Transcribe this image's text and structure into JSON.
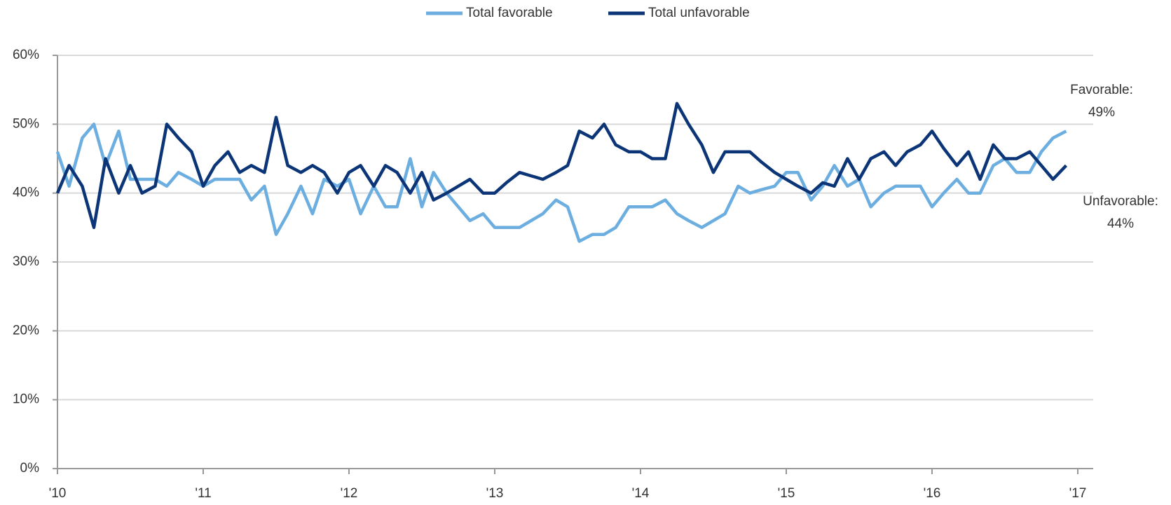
{
  "chart_data": {
    "type": "line",
    "x": [
      2010,
      2010.08,
      2010.17,
      2010.25,
      2010.33,
      2010.42,
      2010.5,
      2010.58,
      2010.67,
      2010.75,
      2010.83,
      2010.92,
      2011,
      2011.08,
      2011.17,
      2011.25,
      2011.33,
      2011.42,
      2011.5,
      2011.58,
      2011.67,
      2011.75,
      2011.83,
      2011.92,
      2012,
      2012.08,
      2012.17,
      2012.25,
      2012.33,
      2012.42,
      2012.5,
      2012.58,
      2012.67,
      2012.75,
      2012.83,
      2012.92,
      2013,
      2013.08,
      2013.17,
      2013.25,
      2013.33,
      2013.42,
      2013.5,
      2013.58,
      2013.67,
      2013.75,
      2013.83,
      2013.92,
      2014,
      2014.08,
      2014.17,
      2014.25,
      2014.33,
      2014.42,
      2014.5,
      2014.58,
      2014.67,
      2014.75,
      2014.83,
      2014.92,
      2015,
      2015.08,
      2015.17,
      2015.25,
      2015.33,
      2015.42,
      2015.5,
      2015.58,
      2015.67,
      2015.75,
      2015.83,
      2015.92,
      2016,
      2016.08,
      2016.17,
      2016.25,
      2016.33,
      2016.42,
      2016.5,
      2016.58,
      2016.67,
      2016.75,
      2016.83,
      2016.92
    ],
    "series": [
      {
        "name": "Total favorable",
        "color": "#6caee0",
        "values": [
          46,
          41,
          48,
          50,
          44,
          49,
          42,
          42,
          42,
          41,
          43,
          42,
          41,
          42,
          42,
          42,
          39,
          41,
          34,
          37,
          41,
          37,
          42,
          41,
          42,
          37,
          41,
          38,
          38,
          45,
          38,
          43,
          40,
          38,
          36,
          37,
          35,
          35,
          35,
          36,
          37,
          39,
          38,
          33,
          34,
          34,
          35,
          38,
          38,
          38,
          39,
          37,
          36,
          35,
          36,
          37,
          41,
          40,
          40.5,
          41,
          43,
          43,
          39,
          41,
          44,
          41,
          42,
          38,
          40,
          41,
          41,
          41,
          38,
          40,
          42,
          40,
          40,
          44,
          45,
          43,
          43,
          46,
          48,
          49
        ]
      },
      {
        "name": "Total unfavorable",
        "color": "#0b3577",
        "values": [
          40,
          44,
          41,
          35,
          45,
          40,
          44,
          40,
          41,
          50,
          48,
          46,
          41,
          44,
          46,
          43,
          44,
          43,
          51,
          44,
          43,
          44,
          43,
          40,
          43,
          44,
          41,
          44,
          43,
          40,
          43,
          39,
          40,
          41,
          42,
          40,
          40,
          41.5,
          43,
          42.5,
          42,
          43,
          44,
          49,
          48,
          50,
          47,
          46,
          46,
          45,
          45,
          53,
          50,
          47,
          43,
          46,
          46,
          46,
          44.5,
          43,
          42,
          41,
          40,
          41.5,
          41,
          45,
          42,
          45,
          46,
          44,
          46,
          47,
          49,
          46.5,
          44,
          46,
          42,
          47,
          45,
          45,
          46,
          44,
          42,
          44
        ]
      }
    ],
    "xlim": [
      2010,
      2017
    ],
    "xticks": [
      {
        "value": 2010,
        "label": "'10"
      },
      {
        "value": 2011,
        "label": "'11"
      },
      {
        "value": 2012,
        "label": "'12"
      },
      {
        "value": 2013,
        "label": "'13"
      },
      {
        "value": 2014,
        "label": "'14"
      },
      {
        "value": 2015,
        "label": "'15"
      },
      {
        "value": 2016,
        "label": "'16"
      },
      {
        "value": 2017,
        "label": "'17"
      }
    ],
    "ylim": [
      0,
      60
    ],
    "yticks": [
      {
        "value": 0,
        "label": "0%"
      },
      {
        "value": 10,
        "label": "10%"
      },
      {
        "value": 20,
        "label": "20%"
      },
      {
        "value": 30,
        "label": "30%"
      },
      {
        "value": 40,
        "label": "40%"
      },
      {
        "value": 50,
        "label": "50%"
      },
      {
        "value": 60,
        "label": "60%"
      }
    ],
    "grid": true,
    "legend": "top",
    "annotations": [
      [
        "Favorable:",
        "49%"
      ],
      [
        "Unfavorable:",
        "44%"
      ]
    ]
  }
}
